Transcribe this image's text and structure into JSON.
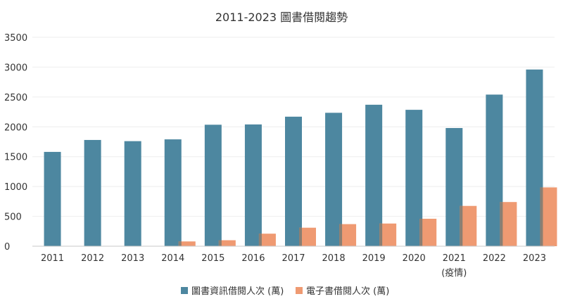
{
  "chart_data": {
    "type": "bar",
    "title": "2011-2023 圖書借閱趨勢",
    "xlabel": "",
    "ylabel": "",
    "categories": [
      "2011",
      "2012",
      "2013",
      "2014",
      "2015",
      "2016",
      "2017",
      "2018",
      "2019",
      "2020",
      "2021",
      "2022",
      "2023"
    ],
    "category_notes": {
      "2021": "(疫情)"
    },
    "ylim": [
      0,
      3500
    ],
    "yticks": [
      0,
      500,
      1000,
      1500,
      2000,
      2500,
      3000,
      3500
    ],
    "grid": true,
    "legend_position": "bottom-center",
    "series": [
      {
        "name": "圖書資訊借閱人次 (萬)",
        "color": "#4d87a0",
        "values": [
          1580,
          1780,
          1760,
          1790,
          2035,
          2040,
          2170,
          2235,
          2370,
          2285,
          1980,
          2540,
          2960
        ]
      },
      {
        "name": "電子書借閱人次 (萬)",
        "color": "#ef9a72",
        "values": [
          0,
          0,
          0,
          80,
          100,
          210,
          310,
          370,
          380,
          460,
          675,
          740,
          985
        ]
      }
    ]
  }
}
